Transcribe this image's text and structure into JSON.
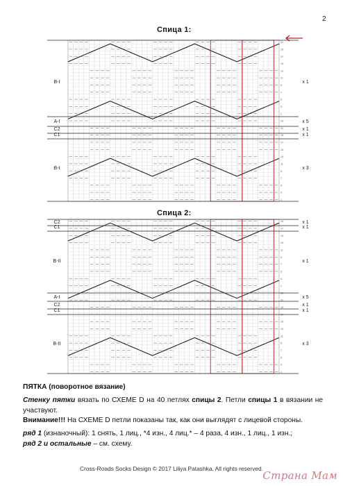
{
  "page_number": "2",
  "charts": [
    {
      "title": "Спица 1:",
      "sections": [
        {
          "label": "B-I",
          "repeat": "x 1"
        },
        {
          "label": "A-I",
          "repeat": "x 5"
        },
        {
          "label": "C2",
          "repeat": "x 1"
        },
        {
          "label": "C1",
          "repeat": "x 1"
        },
        {
          "label": "B-I",
          "repeat": "x 3"
        }
      ]
    },
    {
      "title": "Спица 2:",
      "sections": [
        {
          "label": "C2",
          "repeat": "x 1"
        },
        {
          "label": "C1",
          "repeat": "x 1"
        },
        {
          "label": "B-II",
          "repeat": "x 1"
        },
        {
          "label": "A-I",
          "repeat": "x 5"
        },
        {
          "label": "C2",
          "repeat": "x 1"
        },
        {
          "label": "C1",
          "repeat": "x 1"
        },
        {
          "label": "B-II",
          "repeat": "x 3"
        }
      ]
    }
  ],
  "text": {
    "heading": "ПЯТКА (поворотное вязание)",
    "p1_a": "Стенку пятки",
    "p1_b": " вязать по СХЕМЕ D на 40 петлях ",
    "p1_c": "спицы 2",
    "p1_d": ". Петли ",
    "p1_e": "спицы 1",
    "p1_f": " в вязании не участвуют.",
    "p2_a": "Внимание!!!",
    "p2_b": " На СХЕМЕ D петли показаны так, как они выглядят с лицевой стороны.",
    "p3_a": "ряд 1",
    "p3_b": " (изнаночный): 1 снять, 1 лиц., *4 изн., 4 лиц.* – 4 раза, 4 изн., 1 лиц., 1 изн.;",
    "p4_a": "ряд 2 и остальные",
    "p4_b": " – см. схему."
  },
  "footer": "Cross-Roads Socks Design © 2017 Liliya Patashka. All rights reserved.",
  "watermark": "Страна Мам",
  "colors": {
    "accent": "#b0202a",
    "grid": "#9a9a9a",
    "ink": "#222222"
  }
}
